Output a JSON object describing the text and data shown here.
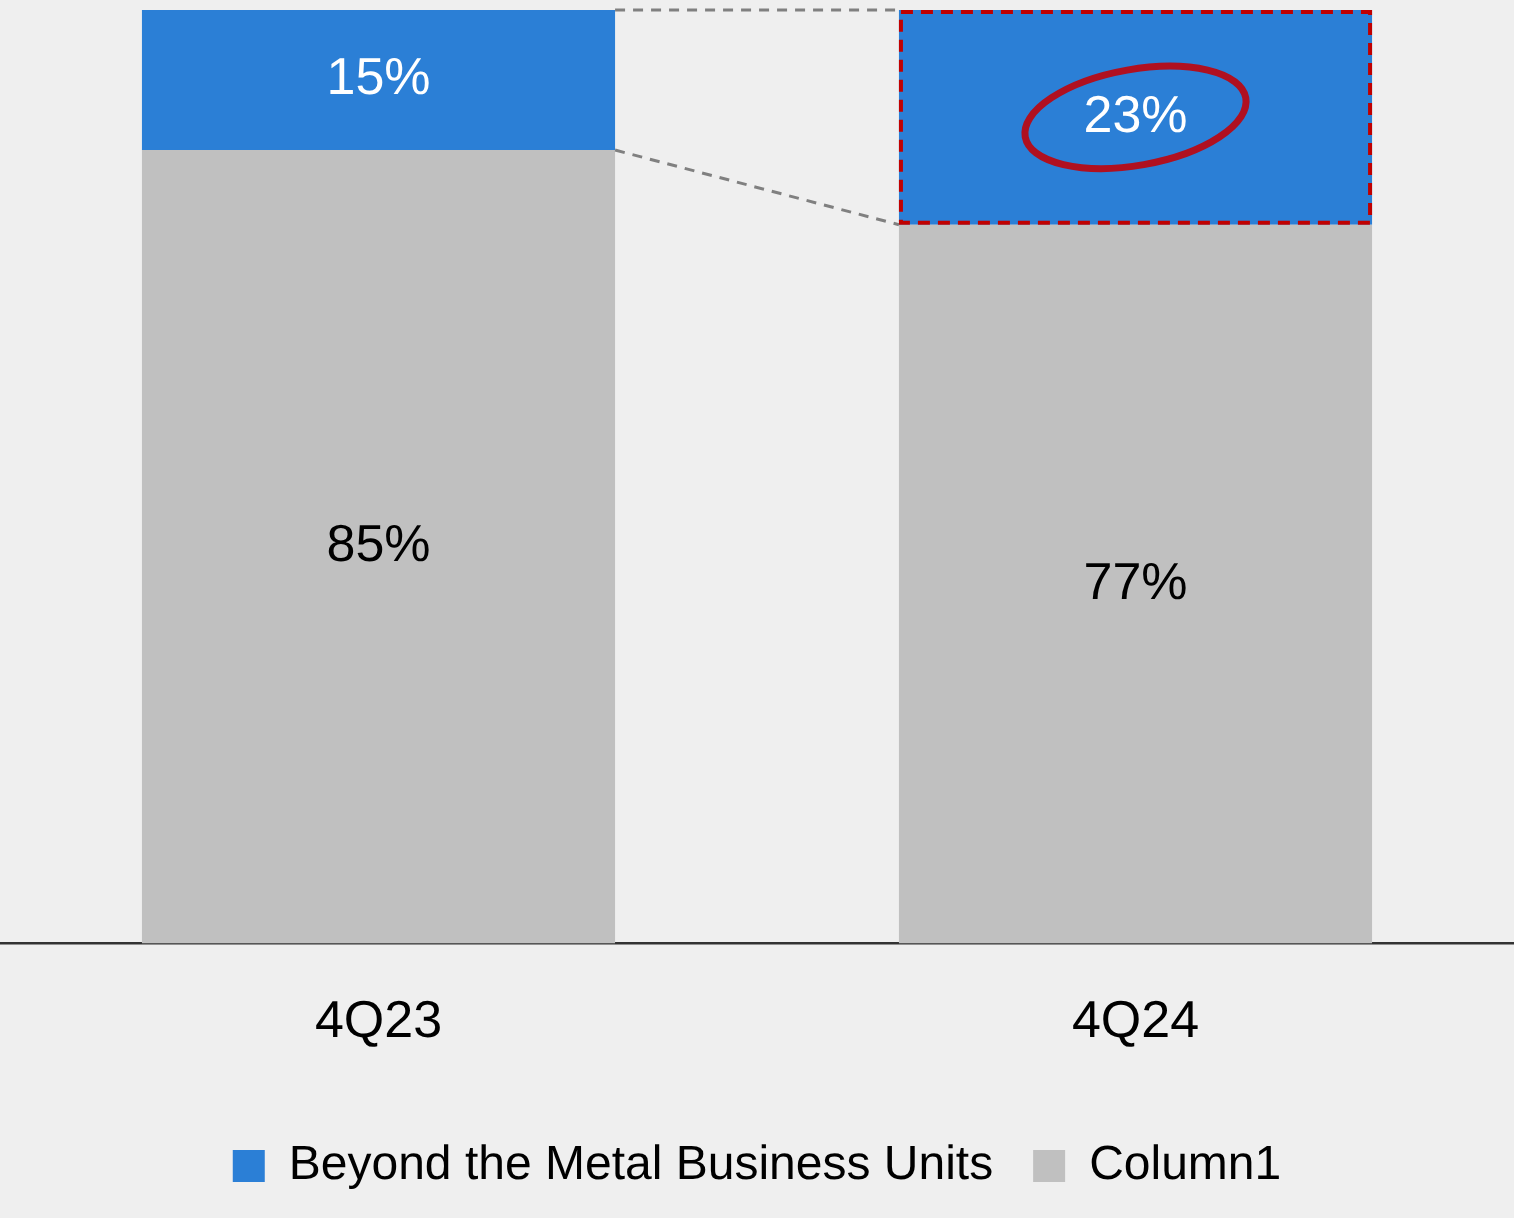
{
  "chart_data": {
    "type": "bar",
    "stacked": true,
    "categories": [
      "4Q23",
      "4Q24"
    ],
    "ylim": [
      0,
      100
    ],
    "series": [
      {
        "name": "Column1",
        "color": "#c0c0c0",
        "values": [
          85,
          77
        ],
        "value_labels": [
          "85%",
          "77%"
        ]
      },
      {
        "name": "Beyond the Metal Business Units",
        "color": "#2b7fd6",
        "values": [
          15,
          23
        ],
        "value_labels": [
          "15%",
          "23%"
        ]
      }
    ],
    "legend": "bottom",
    "grid": false,
    "tick_labels": "x"
  }
}
